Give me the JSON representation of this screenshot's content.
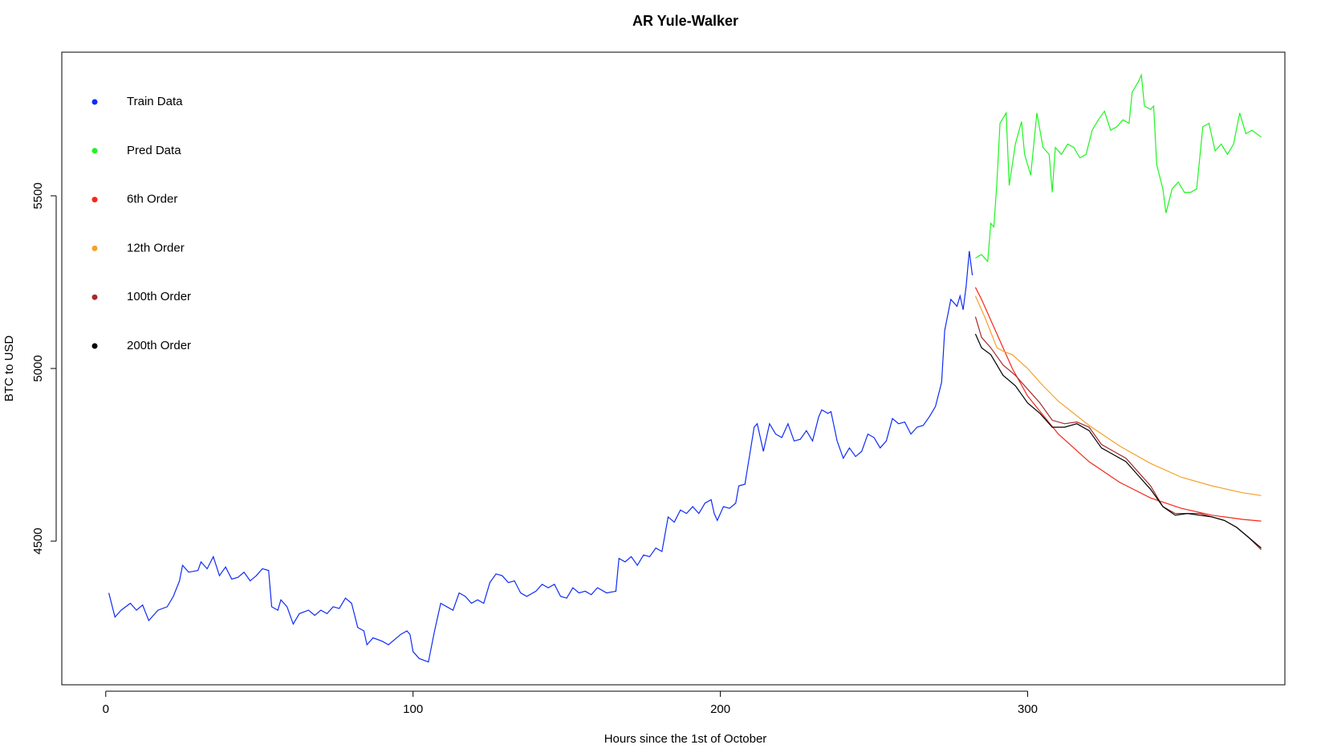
{
  "chart_data": {
    "type": "line",
    "title": "AR Yule-Walker",
    "xlabel": "Hours since the 1st of October",
    "ylabel": "BTC to USD",
    "xlim": [
      -14.3,
      383.7
    ],
    "ylim": [
      4084,
      5916
    ],
    "xticks": [
      0,
      100,
      200,
      300
    ],
    "yticks": [
      4500,
      5000,
      5500
    ],
    "grid": false,
    "legend": "top-left",
    "series": [
      {
        "name": "Train Data",
        "color": "#0f2cf5",
        "x": [
          1,
          3,
          5,
          8,
          10,
          12,
          14,
          17,
          20,
          22,
          24,
          25,
          27,
          30,
          31,
          33,
          35,
          37,
          39,
          41,
          43,
          45,
          47,
          49,
          51,
          53,
          54,
          56,
          57,
          59,
          61,
          63,
          66,
          68,
          70,
          72,
          74,
          76,
          78,
          80,
          82,
          84,
          85,
          87,
          90,
          92,
          94,
          96,
          98,
          99,
          100,
          102,
          105,
          107,
          109,
          111,
          113,
          115,
          117,
          119,
          121,
          123,
          125,
          127,
          129,
          131,
          133,
          135,
          137,
          140,
          142,
          144,
          146,
          148,
          150,
          152,
          154,
          156,
          158,
          160,
          163,
          166,
          167,
          169,
          171,
          173,
          175,
          177,
          179,
          181,
          182,
          183,
          185,
          187,
          189,
          191,
          193,
          195,
          197,
          198,
          199,
          201,
          203,
          205,
          206,
          208,
          209,
          211,
          212,
          214,
          216,
          218,
          220,
          222,
          224,
          226,
          228,
          230,
          232,
          233,
          235,
          236,
          238,
          240,
          242,
          244,
          246,
          248,
          250,
          252,
          254,
          256,
          258,
          260,
          262,
          264,
          266,
          268,
          270,
          272,
          273,
          275,
          277,
          278,
          279,
          280,
          281,
          282
        ],
        "values": [
          4350,
          4280,
          4300,
          4320,
          4300,
          4315,
          4270,
          4300,
          4310,
          4340,
          4385,
          4430,
          4410,
          4415,
          4440,
          4420,
          4455,
          4400,
          4425,
          4390,
          4395,
          4410,
          4385,
          4400,
          4420,
          4415,
          4310,
          4300,
          4330,
          4310,
          4260,
          4290,
          4300,
          4285,
          4300,
          4290,
          4310,
          4305,
          4335,
          4320,
          4250,
          4240,
          4200,
          4220,
          4210,
          4200,
          4215,
          4230,
          4240,
          4230,
          4180,
          4160,
          4150,
          4240,
          4320,
          4310,
          4300,
          4350,
          4340,
          4320,
          4330,
          4320,
          4380,
          4405,
          4400,
          4380,
          4385,
          4350,
          4340,
          4355,
          4375,
          4365,
          4375,
          4340,
          4335,
          4365,
          4350,
          4355,
          4345,
          4365,
          4350,
          4355,
          4450,
          4440,
          4455,
          4430,
          4460,
          4455,
          4480,
          4470,
          4520,
          4570,
          4555,
          4590,
          4580,
          4600,
          4580,
          4610,
          4620,
          4580,
          4560,
          4600,
          4595,
          4610,
          4660,
          4665,
          4720,
          4830,
          4840,
          4760,
          4840,
          4810,
          4800,
          4840,
          4790,
          4795,
          4820,
          4790,
          4860,
          4880,
          4870,
          4875,
          4790,
          4740,
          4770,
          4745,
          4760,
          4810,
          4800,
          4770,
          4790,
          4855,
          4840,
          4845,
          4810,
          4830,
          4835,
          4860,
          4890,
          4960,
          5110,
          5200,
          5180,
          5210,
          5170,
          5240,
          5340,
          5270
        ]
      },
      {
        "name": "Pred Data",
        "color": "#1ef51e",
        "x": [
          283,
          285,
          287,
          288,
          289,
          290,
          291,
          293,
          294,
          296,
          298,
          299,
          301,
          303,
          305,
          307,
          308,
          309,
          311,
          313,
          315,
          317,
          319,
          321,
          323,
          325,
          327,
          329,
          331,
          333,
          334,
          336,
          337,
          338,
          340,
          341,
          342,
          344,
          345,
          347,
          349,
          351,
          353,
          355,
          357,
          359,
          361,
          363,
          365,
          367,
          369,
          371,
          373,
          376
        ],
        "values": [
          5320,
          5330,
          5310,
          5420,
          5410,
          5540,
          5710,
          5740,
          5530,
          5650,
          5715,
          5620,
          5560,
          5740,
          5640,
          5620,
          5510,
          5640,
          5620,
          5650,
          5640,
          5610,
          5620,
          5690,
          5720,
          5745,
          5690,
          5700,
          5720,
          5710,
          5800,
          5830,
          5850,
          5760,
          5750,
          5760,
          5590,
          5520,
          5450,
          5520,
          5540,
          5510,
          5510,
          5520,
          5700,
          5710,
          5630,
          5650,
          5620,
          5650,
          5740,
          5680,
          5690,
          5670
        ]
      },
      {
        "name": "6th Order",
        "color": "#f5261a",
        "x": [
          283,
          285,
          290,
          295,
          300,
          310,
          320,
          330,
          340,
          350,
          360,
          370,
          376
        ],
        "values": [
          5235,
          5200,
          5100,
          5000,
          4920,
          4810,
          4730,
          4670,
          4625,
          4595,
          4575,
          4563,
          4558
        ]
      },
      {
        "name": "12th Order",
        "color": "#f5a02a",
        "x": [
          283,
          286,
          290,
          292,
          295,
          300,
          305,
          310,
          320,
          330,
          340,
          350,
          360,
          370,
          376
        ],
        "values": [
          5210,
          5150,
          5060,
          5050,
          5040,
          5000,
          4950,
          4905,
          4835,
          4775,
          4725,
          4685,
          4660,
          4640,
          4632
        ]
      },
      {
        "name": "100th Order",
        "color": "#a52a2a",
        "x": [
          283,
          285,
          288,
          292,
          296,
          300,
          304,
          308,
          312,
          316,
          320,
          324,
          328,
          332,
          336,
          340,
          344,
          348,
          352,
          356,
          360,
          364,
          368,
          372,
          376
        ],
        "values": [
          5150,
          5090,
          5060,
          5010,
          4980,
          4940,
          4900,
          4850,
          4840,
          4845,
          4830,
          4780,
          4760,
          4740,
          4700,
          4660,
          4600,
          4580,
          4580,
          4580,
          4570,
          4560,
          4540,
          4510,
          4475
        ]
      },
      {
        "name": "200th Order",
        "color": "#000000",
        "x": [
          283,
          285,
          288,
          292,
          296,
          300,
          304,
          308,
          312,
          316,
          320,
          324,
          328,
          332,
          336,
          340,
          344,
          348,
          352,
          356,
          360,
          364,
          368,
          372,
          376
        ],
        "values": [
          5100,
          5060,
          5040,
          4980,
          4950,
          4900,
          4870,
          4830,
          4830,
          4840,
          4820,
          4770,
          4750,
          4730,
          4690,
          4650,
          4600,
          4575,
          4580,
          4575,
          4570,
          4560,
          4540,
          4510,
          4480
        ]
      }
    ]
  }
}
